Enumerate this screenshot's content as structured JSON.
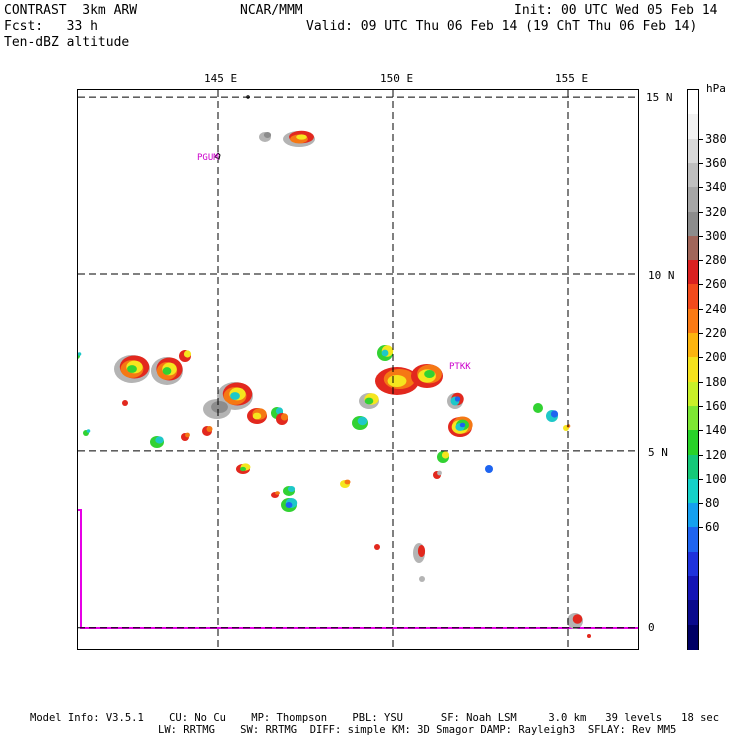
{
  "header": {
    "left_line1": "CONTRAST  3km ARW",
    "left_line2": "Fcst:   33 h",
    "left_line3": "Ten-dBZ altitude",
    "center": "NCAR/MMM",
    "init": "Init: 00 UTC Wed 05 Feb 14",
    "valid": "Valid: 09 UTC Thu 06 Feb 14 (19 ChT Thu 06 Feb 14)"
  },
  "map": {
    "lon_labels": [
      "145 E",
      "150 E",
      "155 E"
    ],
    "lat_labels": [
      "15 N",
      "10 N",
      "5 N",
      "0"
    ],
    "gridlines": {
      "lon": [
        145,
        150,
        155
      ],
      "lat": [
        15,
        10,
        5,
        0
      ],
      "style": "dashed"
    },
    "extent": {
      "lon": [
        141,
        157
      ],
      "lat": [
        -0.6,
        15.2
      ]
    },
    "stations": [
      {
        "id": "PGUM",
        "lon": 144.8,
        "lat": 13.5
      },
      {
        "id": "PTKK",
        "lon": 151.8,
        "lat": 7.5
      }
    ]
  },
  "colorbar": {
    "unit": "hPa",
    "labels": [
      "380",
      "360",
      "340",
      "320",
      "300",
      "280",
      "260",
      "240",
      "220",
      "200",
      "180",
      "160",
      "140",
      "120",
      "100",
      "80",
      "60"
    ],
    "colors": [
      "#ffffff",
      "#f2f2f2",
      "#d9d9d9",
      "#bfbfbf",
      "#a6a6a6",
      "#8c8c8c",
      "#a0665a",
      "#d92020",
      "#f24a1c",
      "#fa7a14",
      "#fcb40e",
      "#f5e21c",
      "#c8f028",
      "#7de632",
      "#28d228",
      "#14c878",
      "#14d2c8",
      "#14a0f0",
      "#1e64f0",
      "#1e32dc",
      "#1414b4",
      "#0a0a8c",
      "#000064"
    ]
  },
  "footer": {
    "line1": "Model Info: V3.5.1    CU: No Cu    MP: Thompson    PBL: YSU      SF: Noah LSM     3.0 km   39 levels   18 sec",
    "line2": "LW: RRTMG    SW: RRTMG  DIFF: simple KM: 3D Smagor DAMP: Rayleigh3  SFLAY: Rev MM5"
  },
  "cell_colors": {
    "gray": "#b4b4b4",
    "darkgray": "#8c8c8c",
    "red": "#e2281e",
    "orange": "#f57814",
    "yellow": "#f5e61e",
    "green": "#32d232",
    "cyan": "#1ec8c8",
    "blue": "#1e64f0",
    "magenta": "#e600e6"
  }
}
